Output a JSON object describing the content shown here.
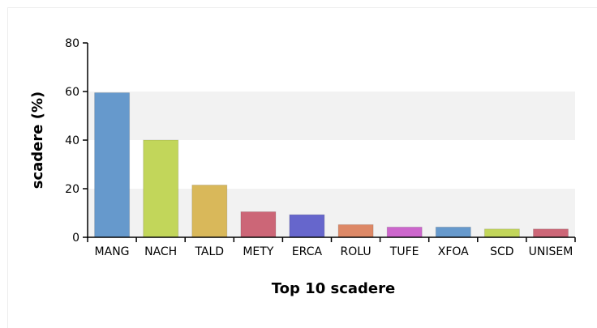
{
  "chart_data": {
    "type": "bar",
    "title": "",
    "xlabel": "Top 10 scadere",
    "ylabel": "scadere (%)",
    "ylim": [
      0,
      80
    ],
    "yticks": [
      0,
      20,
      40,
      60,
      80
    ],
    "grid": "horizontal bands",
    "categories": [
      "MANG",
      "NACH",
      "TALD",
      "METY",
      "ERCA",
      "ROLU",
      "TUFE",
      "XFOA",
      "SCD",
      "UNISEM"
    ],
    "values": [
      59.5,
      40,
      21.5,
      10.5,
      9.3,
      5.2,
      4.2,
      4.2,
      3.4,
      3.4
    ],
    "colors": [
      "#6699cc",
      "#c2d65a",
      "#d9b85a",
      "#cc6677",
      "#6666cc",
      "#dd8866",
      "#cc66cc",
      "#6699cc",
      "#c2d65a",
      "#cc6677"
    ]
  }
}
